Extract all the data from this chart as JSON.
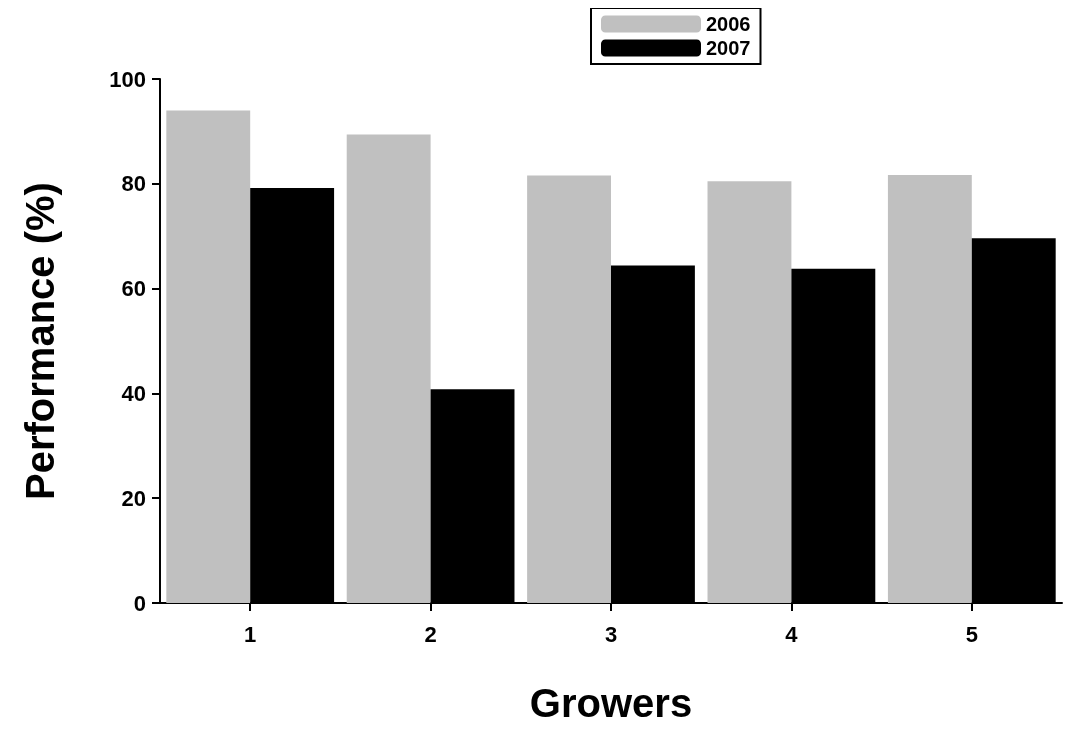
{
  "chart_data": {
    "type": "bar",
    "xlabel": "Growers",
    "ylabel": "Performance (%)",
    "categories": [
      "1",
      "2",
      "3",
      "4",
      "5"
    ],
    "series": [
      {
        "name": "2006",
        "color": "#c0c0c0",
        "values": [
          94.0,
          89.4,
          81.6,
          80.5,
          81.7
        ]
      },
      {
        "name": "2007",
        "color": "#000000",
        "values": [
          79.2,
          40.8,
          64.4,
          63.8,
          69.6
        ]
      }
    ],
    "ylim": [
      0,
      100
    ],
    "yticks": [
      0,
      20,
      40,
      60,
      80,
      100
    ],
    "grid": false,
    "legend": "top"
  }
}
